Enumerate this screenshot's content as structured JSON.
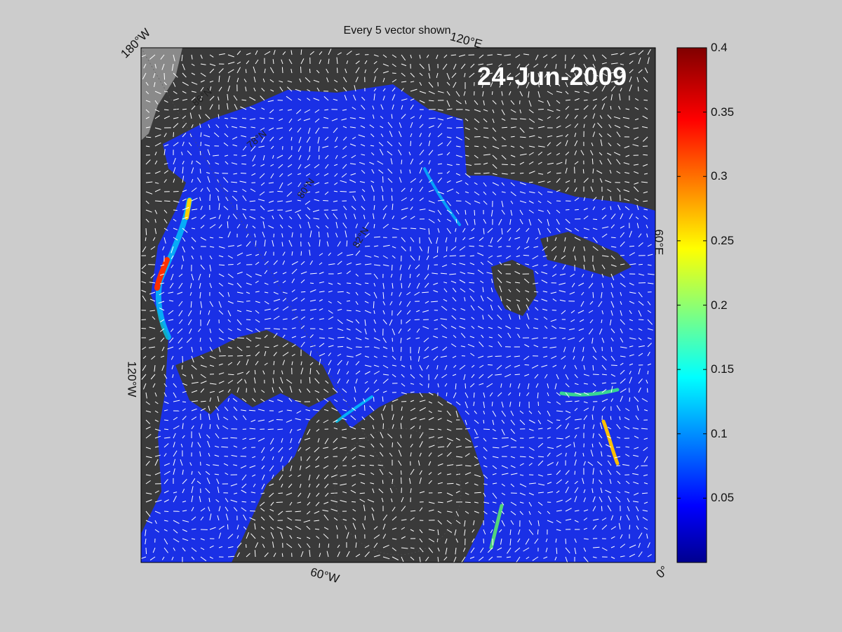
{
  "map": {
    "title": "Every 5 vector shown",
    "date": "24-Jun-2009",
    "projection": "north-polar-stereographic",
    "field": "sea ice velocity magnitude with direction vectors",
    "longitude_labels": {
      "lon_180w": "180°W",
      "lon_120e": "120°E",
      "lon_60e": "60°E",
      "lon_120w": "120°W",
      "lon_60w": "60°W",
      "lon_0": "0°"
    },
    "latitude_labels": {
      "lat_86n": "86°N",
      "lat_78n": "78°N",
      "lat_80n": "80°N",
      "lat_82n": "82°N"
    }
  },
  "colorbar": {
    "colormap": "jet",
    "min": 0,
    "max": 0.4,
    "ticks": [
      "0.05",
      "0.1",
      "0.15",
      "0.2",
      "0.25",
      "0.3",
      "0.35",
      "0.4"
    ],
    "tick_values": [
      0.05,
      0.1,
      0.15,
      0.2,
      0.25,
      0.3,
      0.35,
      0.4
    ]
  },
  "colors": {
    "figure_bg": "#cccccc",
    "land": "#3a3a3a",
    "land_unmapped": "#8a8a8a",
    "ocean_low": "#1428e8",
    "vector": "#ffffff"
  }
}
